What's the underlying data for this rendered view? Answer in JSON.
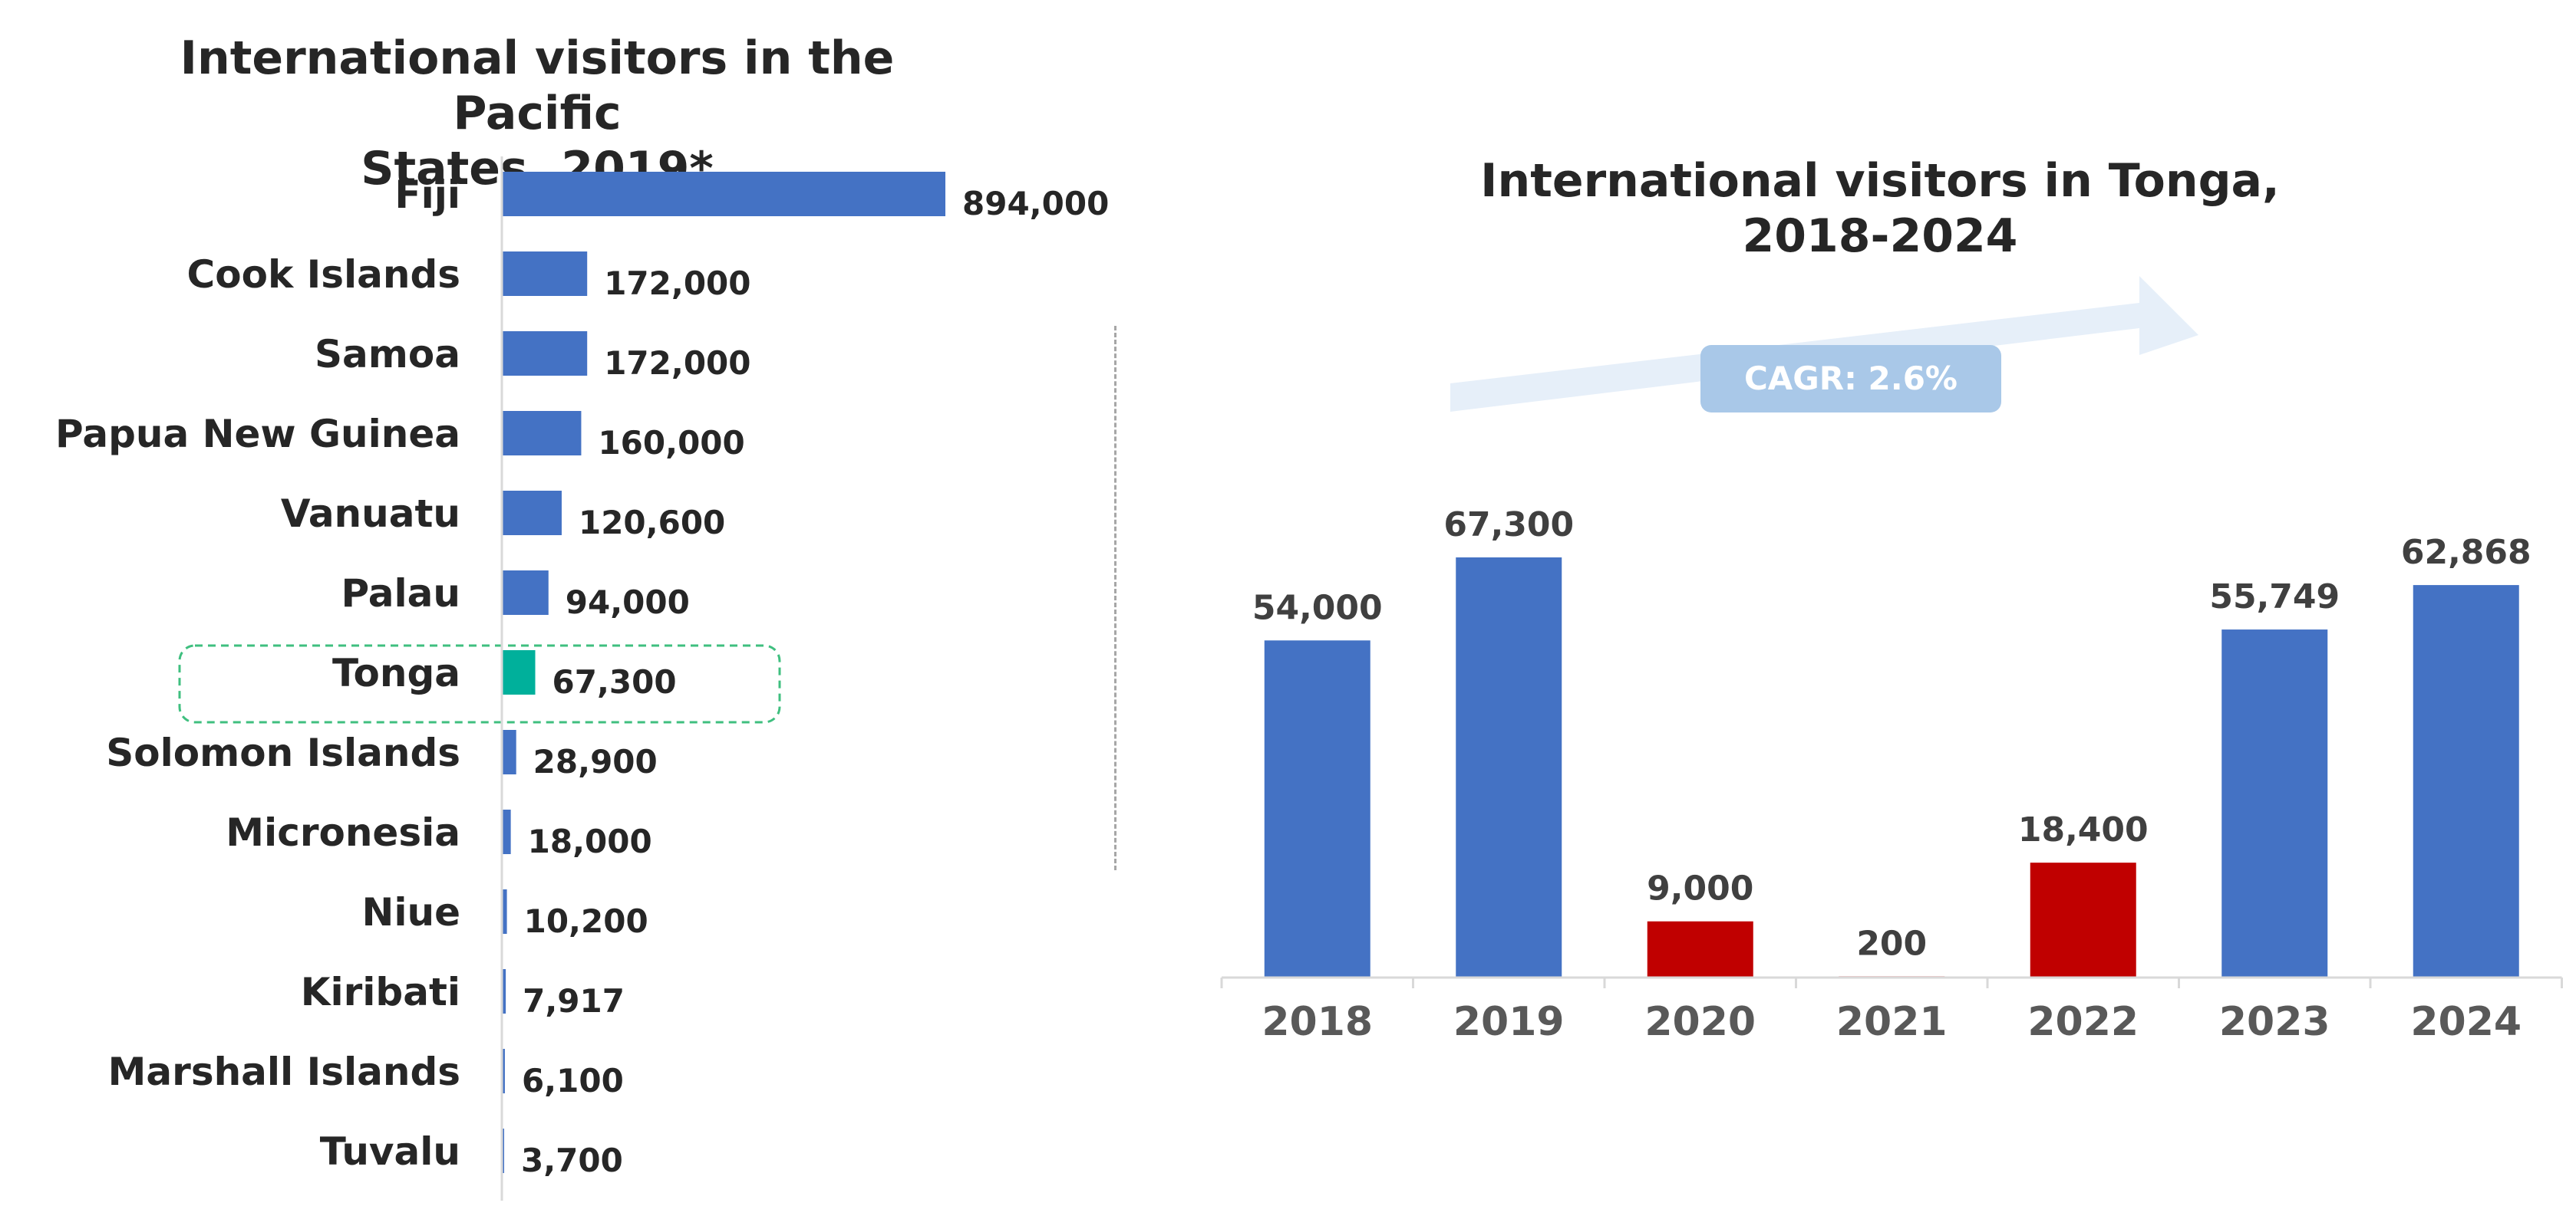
{
  "left_chart": {
    "title_line1": "International visitors in the Pacific",
    "title_line2": "States, 2019*"
  },
  "right_chart": {
    "title_line1": "International visitors in Tonga,",
    "title_line2": "2018-2024",
    "cagr_label": "CAGR: 2.6%"
  },
  "colors": {
    "bar_blue": "#4472c4",
    "highlight_green": "#00b09b",
    "decline_red": "#c00000",
    "arrow_fill": "#e6eff9",
    "highlight_border": "#3fbf7f"
  },
  "chart_data": [
    {
      "type": "bar",
      "orientation": "horizontal",
      "title": "International visitors in the Pacific States, 2019*",
      "categories": [
        "Fiji",
        "Cook Islands",
        "Samoa",
        "Papua New Guinea",
        "Vanuatu",
        "Palau",
        "Tonga",
        "Solomon Islands",
        "Micronesia",
        "Niue",
        "Kiribati",
        "Marshall Islands",
        "Tuvalu"
      ],
      "values": [
        894000,
        172000,
        172000,
        160000,
        120600,
        94000,
        67300,
        28900,
        18000,
        10200,
        7917,
        6100,
        3700
      ],
      "value_labels": [
        "894,000",
        "172,000",
        "172,000",
        "160,000",
        "120,600",
        "94,000",
        "67,300",
        "28,900",
        "18,000",
        "10,200",
        "7,917",
        "6,100",
        "3,700"
      ],
      "highlighted": "Tonga",
      "grid": false
    },
    {
      "type": "bar",
      "title": "International visitors in Tonga, 2018-2024",
      "categories": [
        "2018",
        "2019",
        "2020",
        "2021",
        "2022",
        "2023",
        "2024"
      ],
      "values": [
        54000,
        67300,
        9000,
        200,
        18400,
        55749,
        62868
      ],
      "value_labels": [
        "54,000",
        "67,300",
        "9,000",
        "200",
        "18,400",
        "55,749",
        "62,868"
      ],
      "bar_colors": [
        "#4472c4",
        "#4472c4",
        "#c00000",
        "#c00000",
        "#c00000",
        "#4472c4",
        "#4472c4"
      ],
      "annotation": "CAGR: 2.6%",
      "grid": false
    }
  ]
}
